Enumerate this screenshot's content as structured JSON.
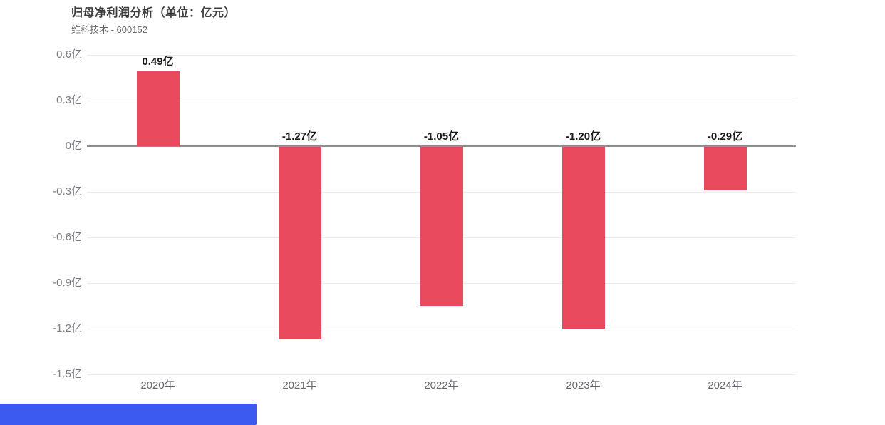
{
  "header": {
    "title": "归母净利润分析（单位：亿元）",
    "subtitle": "维科技术 - 600152"
  },
  "chart_data": {
    "type": "bar",
    "title": "归母净利润分析（单位：亿元）",
    "subtitle": "维科技术 - 600152",
    "categories": [
      "2020年",
      "2021年",
      "2022年",
      "2023年",
      "2024年"
    ],
    "values": [
      0.49,
      -1.27,
      -1.05,
      -1.2,
      -0.29
    ],
    "value_labels": [
      "0.49亿",
      "-1.27亿",
      "-1.05亿",
      "-1.20亿",
      "-0.29亿"
    ],
    "xlabel": "",
    "ylabel": "",
    "ylim": [
      -1.5,
      0.6
    ],
    "grid": true,
    "legend": "none",
    "yticks": [
      {
        "value": 0.6,
        "label": "0.6亿"
      },
      {
        "value": 0.3,
        "label": "0.3亿"
      },
      {
        "value": 0,
        "label": "0亿"
      },
      {
        "value": -0.3,
        "label": "-0.3亿"
      },
      {
        "value": -0.6,
        "label": "-0.6亿"
      },
      {
        "value": -0.9,
        "label": "-0.9亿"
      },
      {
        "value": -1.2,
        "label": "-1.2亿"
      },
      {
        "value": -1.5,
        "label": "-1.5亿"
      }
    ],
    "colors": {
      "bar": "#e8495c",
      "grid": "#ebebf0",
      "zero_line": "#8f8f8f",
      "value_label": "#1a1a1a",
      "axis_label": "#787d86"
    }
  },
  "footer": {
    "progress_bar_color": "#3d5af0",
    "progress_percent": 29
  }
}
